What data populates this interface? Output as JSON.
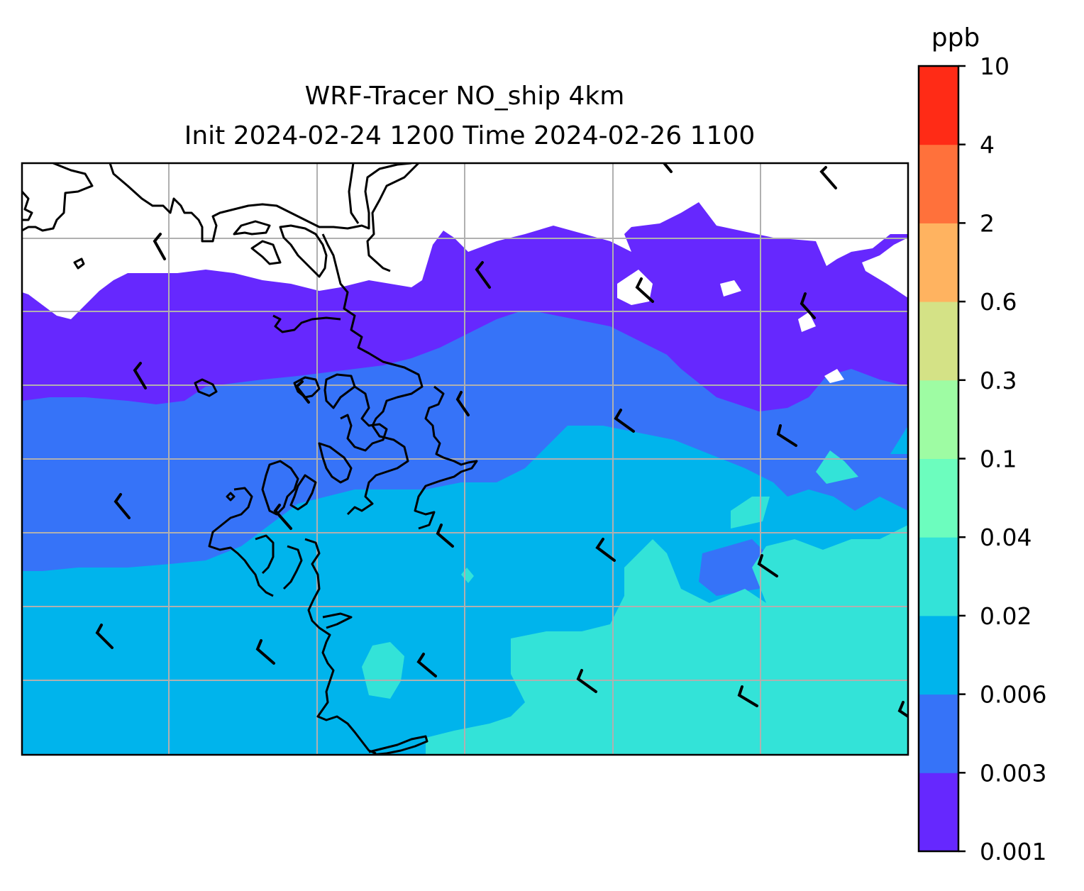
{
  "figure": {
    "title_line1": "WRF-Tracer NO_ship 4km",
    "title_line2": "Init 2024-02-24 1200 Time 2024-02-26 1100"
  },
  "colorbar": {
    "unit_label": "ppb",
    "levels": [
      {
        "label": "0.001",
        "color": "#6628fe"
      },
      {
        "label": "0.003",
        "color": "#3673f8"
      },
      {
        "label": "0.006",
        "color": "#00b4ec"
      },
      {
        "label": "0.02",
        "color": "#33e3d8"
      },
      {
        "label": "0.04",
        "color": "#6cfdbe"
      },
      {
        "label": "0.1",
        "color": "#9efca3"
      },
      {
        "label": "0.3",
        "color": "#d4e286"
      },
      {
        "label": "0.6",
        "color": "#ffb360"
      },
      {
        "label": "2",
        "color": "#ff713b"
      },
      {
        "label": "4",
        "color": "#ff2b16"
      },
      {
        "label": "10",
        "color": null
      }
    ]
  },
  "map": {
    "gridlines": true,
    "coastline_color": "#000000",
    "wind_barb_color": "#000000",
    "shown_fields": [
      "NO_ship tracer concentration (filled contours)",
      "wind barbs",
      "coastline"
    ]
  }
}
